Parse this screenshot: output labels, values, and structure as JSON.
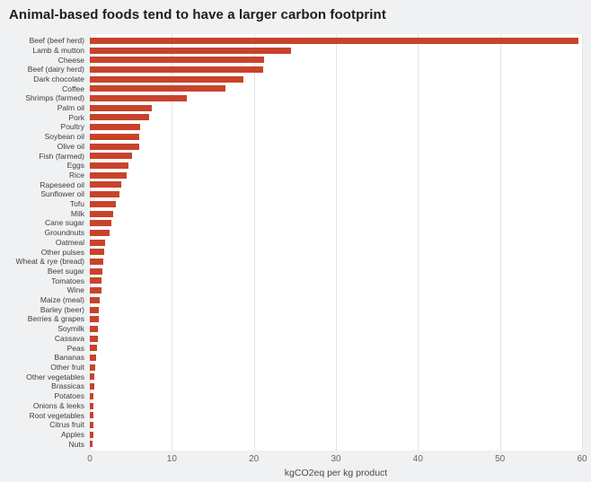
{
  "chart_data": {
    "type": "bar",
    "orientation": "horizontal",
    "title": "Animal-based foods tend to have a larger carbon footprint",
    "xlabel": "kgCO2eq per kg product",
    "ylabel": "",
    "xlim": [
      0,
      60
    ],
    "xticks": [
      0,
      10,
      20,
      30,
      40,
      50,
      60
    ],
    "grid": true,
    "legend": false,
    "categories": [
      "Beef (beef herd)",
      "Lamb & mutton",
      "Cheese",
      "Beef (dairy herd)",
      "Dark chocolate",
      "Coffee",
      "Shrimps (farmed)",
      "Palm oil",
      "Pork",
      "Poultry",
      "Soybean oil",
      "Olive oil",
      "Fish (farmed)",
      "Eggs",
      "Rice",
      "Rapeseed oil",
      "Sunflower oil",
      "Tofu",
      "Milk",
      "Cane sugar",
      "Groundnuts",
      "Oatmeal",
      "Other pulses",
      "Wheat & rye (bread)",
      "Beet sugar",
      "Tomatoes",
      "Wine",
      "Maize (meal)",
      "Barley (beer)",
      "Berries & grapes",
      "Soymilk",
      "Cassava",
      "Peas",
      "Bananas",
      "Other fruit",
      "Other vegetables",
      "Brassicas",
      "Potatoes",
      "Onions & leeks",
      "Root vegetables",
      "Citrus fruit",
      "Apples",
      "Nuts"
    ],
    "values": [
      59.6,
      24.5,
      21.2,
      21.1,
      18.7,
      16.5,
      11.8,
      7.6,
      7.2,
      6.1,
      6.0,
      6.0,
      5.1,
      4.7,
      4.5,
      3.8,
      3.6,
      3.2,
      2.8,
      2.6,
      2.4,
      1.9,
      1.8,
      1.6,
      1.5,
      1.4,
      1.4,
      1.2,
      1.1,
      1.1,
      1.0,
      1.0,
      0.9,
      0.8,
      0.7,
      0.5,
      0.5,
      0.4,
      0.4,
      0.4,
      0.4,
      0.4,
      0.3
    ]
  },
  "colors": {
    "background": "#f0f1f2",
    "plot_background": "#ffffff",
    "bar": "#c8432b",
    "grid": "#e4e4e4",
    "title_text": "#1c1c1c",
    "label_text": "#3d3d3d",
    "tick_text": "#666666"
  }
}
